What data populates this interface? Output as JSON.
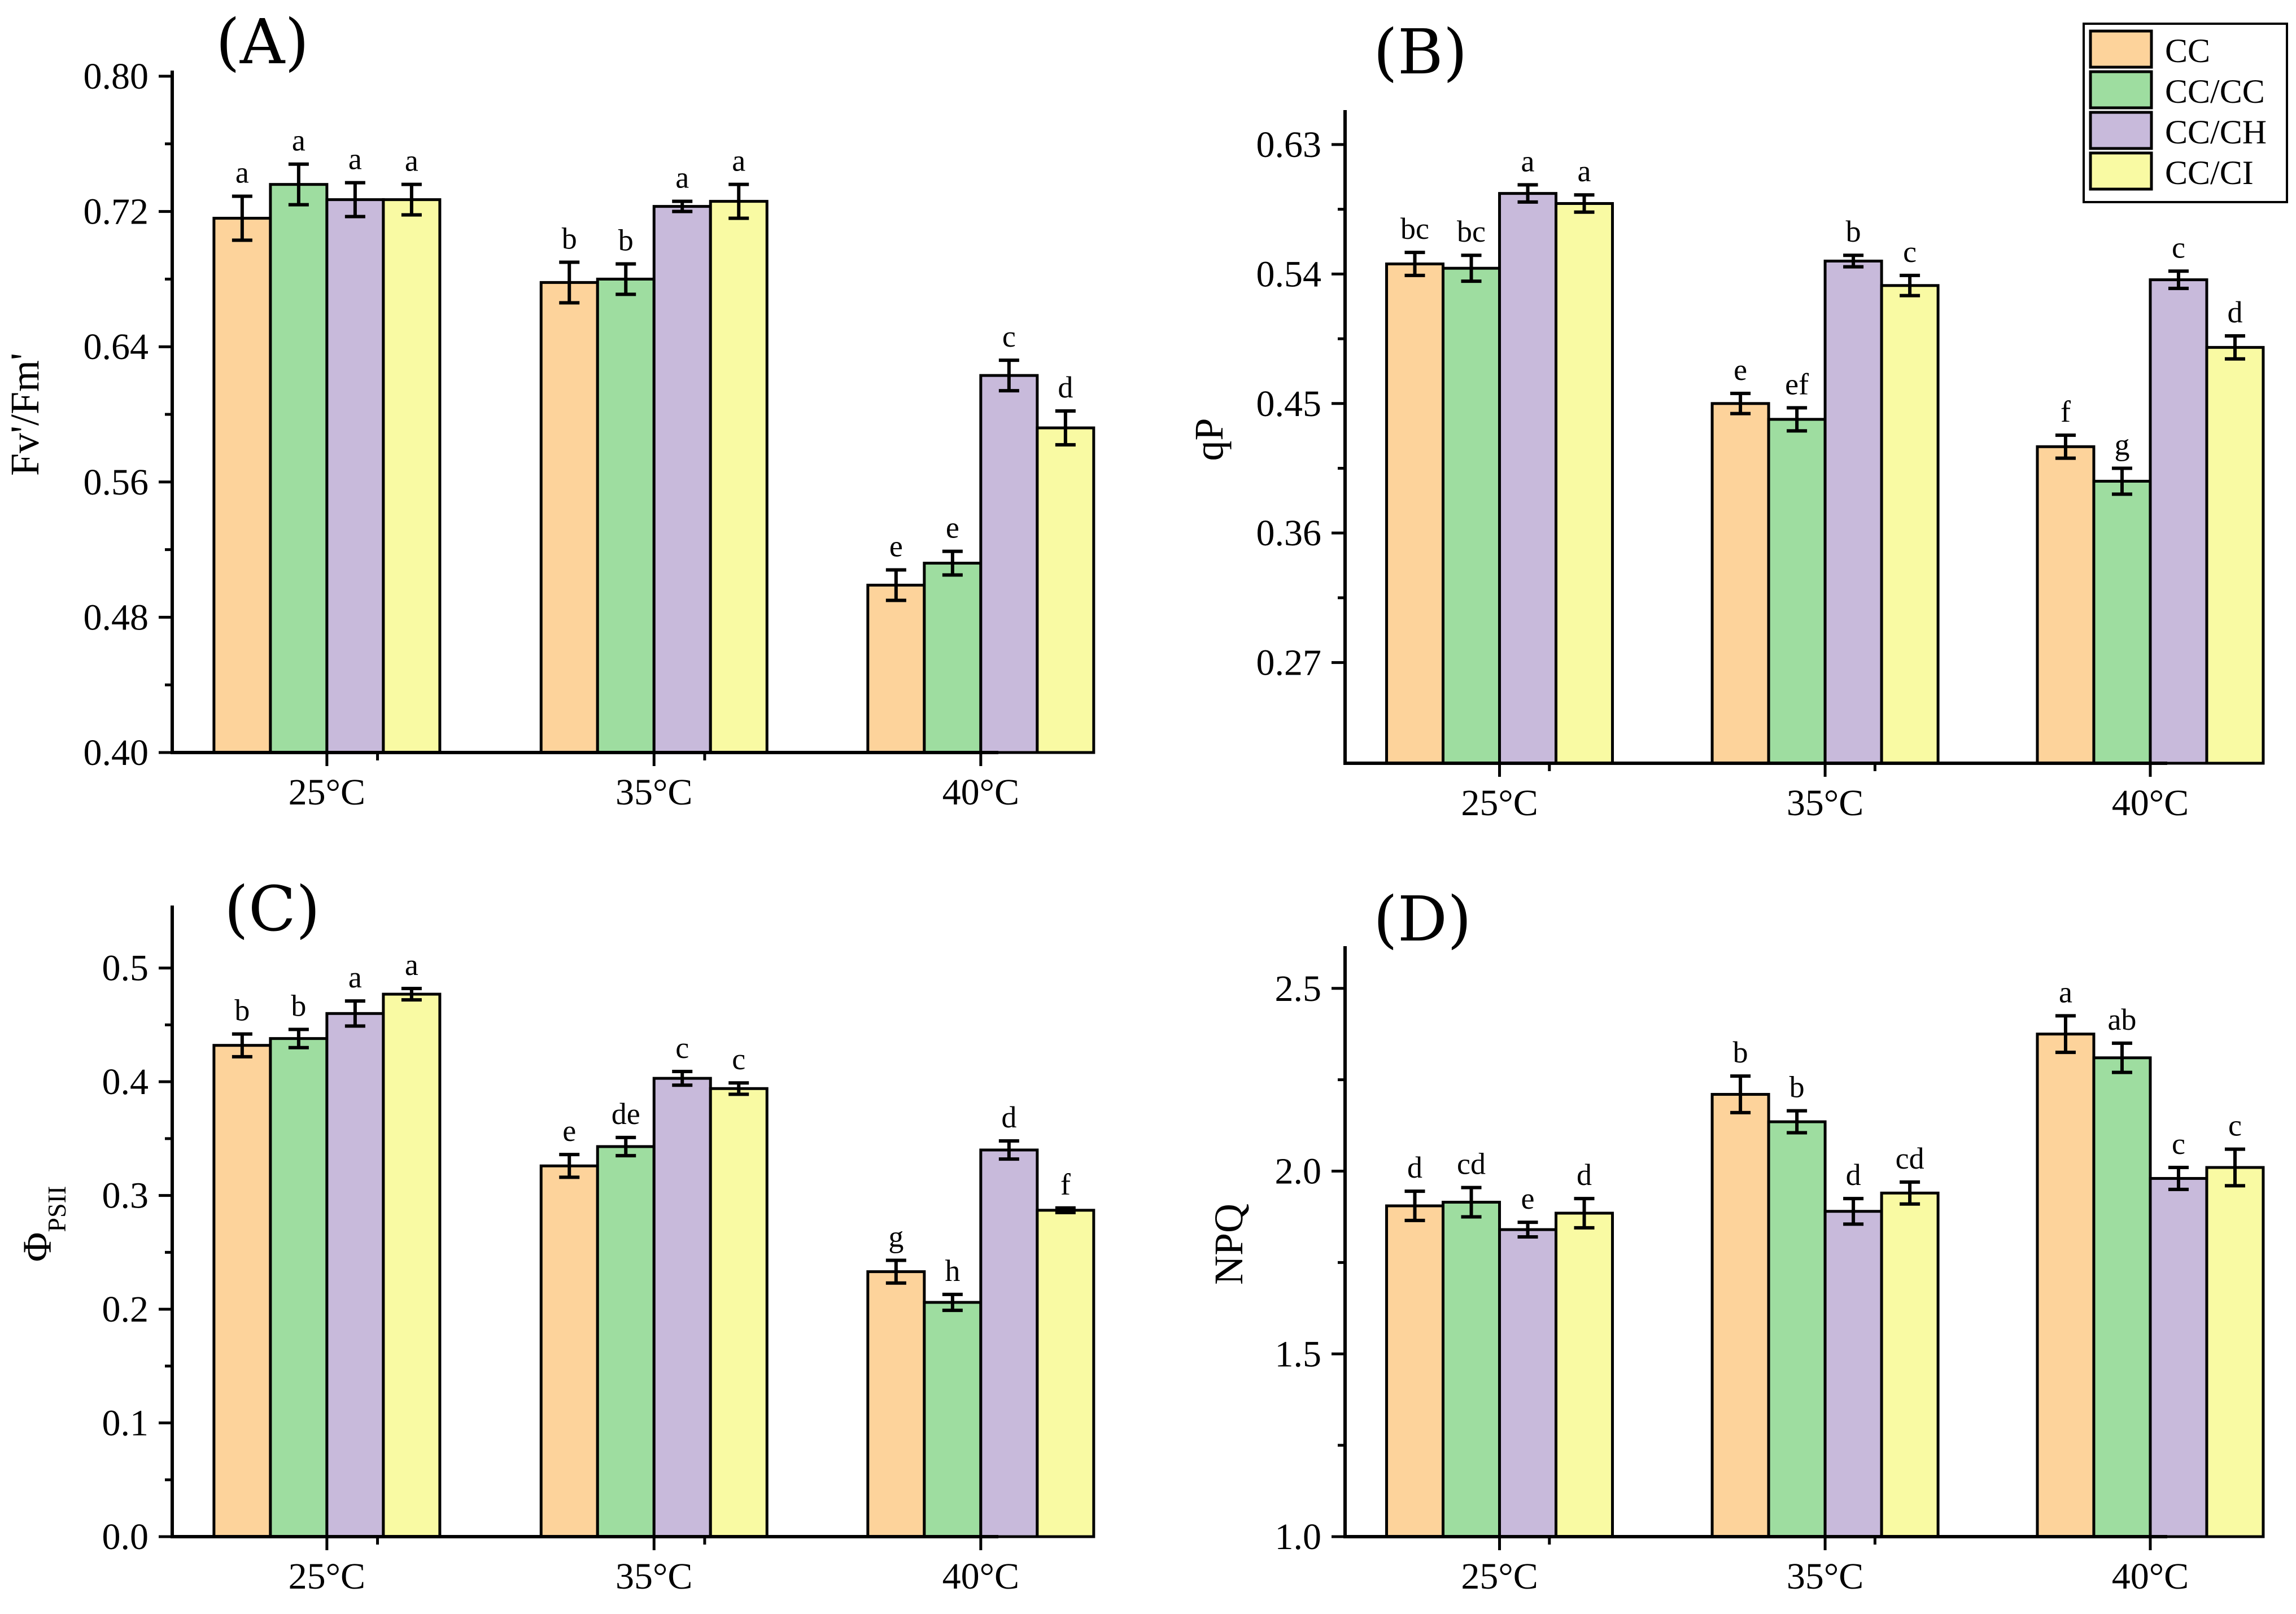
{
  "legend": {
    "items": [
      {
        "label": "CC",
        "color": "#FDD39B"
      },
      {
        "label": "CC/CC",
        "color": "#9EDDA0"
      },
      {
        "label": "CC/CH",
        "color": "#C8BADB"
      },
      {
        "label": "CC/CI",
        "color": "#F9FAA3"
      }
    ]
  },
  "chart_data": [
    {
      "type": "bar",
      "panel": "(A)",
      "ylabel": "Fv'/Fm'",
      "ylim": [
        0.4,
        0.8
      ],
      "yticks": [
        "0.40",
        "0.48",
        "0.56",
        "0.64",
        "0.72",
        "0.80"
      ],
      "categories": [
        "25°C",
        "35°C",
        "40°C"
      ],
      "series": [
        {
          "name": "CC",
          "values": [
            0.716,
            0.678,
            0.499
          ],
          "errors": [
            0.013,
            0.012,
            0.009
          ],
          "letters": [
            "a",
            "b",
            "e"
          ]
        },
        {
          "name": "CC/CC",
          "values": [
            0.736,
            0.68,
            0.512
          ],
          "errors": [
            0.012,
            0.009,
            0.007
          ],
          "letters": [
            "a",
            "b",
            "e"
          ]
        },
        {
          "name": "CC/CH",
          "values": [
            0.727,
            0.723,
            0.623
          ],
          "errors": [
            0.01,
            0.003,
            0.009
          ],
          "letters": [
            "a",
            "a",
            "c"
          ]
        },
        {
          "name": "CC/CI",
          "values": [
            0.727,
            0.726,
            0.592
          ],
          "errors": [
            0.009,
            0.01,
            0.01
          ],
          "letters": [
            "a",
            "a",
            "d"
          ]
        }
      ]
    },
    {
      "type": "bar",
      "panel": "(B)",
      "ylabel": "qP",
      "ylim": [
        0.2,
        0.65
      ],
      "yticks": [
        "0.27",
        "0.36",
        "0.45",
        "0.54",
        "0.63"
      ],
      "categories": [
        "25°C",
        "35°C",
        "40°C"
      ],
      "series": [
        {
          "name": "CC",
          "values": [
            0.547,
            0.45,
            0.42
          ],
          "errors": [
            0.008,
            0.007,
            0.008
          ],
          "letters": [
            "bc",
            "e",
            "f"
          ]
        },
        {
          "name": "CC/CC",
          "values": [
            0.544,
            0.439,
            0.396
          ],
          "errors": [
            0.009,
            0.008,
            0.009
          ],
          "letters": [
            "bc",
            "ef",
            "g"
          ]
        },
        {
          "name": "CC/CH",
          "values": [
            0.596,
            0.549,
            0.536
          ],
          "errors": [
            0.006,
            0.004,
            0.006
          ],
          "letters": [
            "a",
            "b",
            "c"
          ]
        },
        {
          "name": "CC/CI",
          "values": [
            0.589,
            0.532,
            0.489
          ],
          "errors": [
            0.006,
            0.007,
            0.008
          ],
          "letters": [
            "a",
            "c",
            "d"
          ]
        }
      ]
    },
    {
      "type": "bar",
      "panel": "(C)",
      "ylabel": "Φ",
      "ylabel_sub": "PSII",
      "ylim": [
        0.0,
        0.55
      ],
      "yticks": [
        "0.0",
        "0.1",
        "0.2",
        "0.3",
        "0.4",
        "0.5"
      ],
      "categories": [
        "25°C",
        "35°C",
        "40°C"
      ],
      "series": [
        {
          "name": "CC",
          "values": [
            0.432,
            0.326,
            0.233
          ],
          "errors": [
            0.01,
            0.01,
            0.01
          ],
          "letters": [
            "b",
            "e",
            "g"
          ]
        },
        {
          "name": "CC/CC",
          "values": [
            0.438,
            0.343,
            0.206
          ],
          "errors": [
            0.008,
            0.008,
            0.007
          ],
          "letters": [
            "b",
            "de",
            "h"
          ]
        },
        {
          "name": "CC/CH",
          "values": [
            0.46,
            0.403,
            0.34
          ],
          "errors": [
            0.011,
            0.006,
            0.008
          ],
          "letters": [
            "a",
            "c",
            "d"
          ]
        },
        {
          "name": "CC/CI",
          "values": [
            0.477,
            0.394,
            0.287
          ],
          "errors": [
            0.005,
            0.005,
            0.002
          ],
          "letters": [
            "a",
            "c",
            "f"
          ]
        }
      ]
    },
    {
      "type": "bar",
      "panel": "(D)",
      "ylabel": "NPQ",
      "ylim": [
        1.0,
        2.6
      ],
      "yticks": [
        "1.0",
        "1.5",
        "2.0",
        "2.5"
      ],
      "categories": [
        "25°C",
        "35°C",
        "40°C"
      ],
      "series": [
        {
          "name": "CC",
          "values": [
            1.905,
            2.21,
            2.375
          ],
          "errors": [
            0.04,
            0.05,
            0.05
          ],
          "letters": [
            "d",
            "b",
            "a"
          ]
        },
        {
          "name": "CC/CC",
          "values": [
            1.915,
            2.135,
            2.31
          ],
          "errors": [
            0.04,
            0.03,
            0.04
          ],
          "letters": [
            "cd",
            "b",
            "ab"
          ]
        },
        {
          "name": "CC/CH",
          "values": [
            1.84,
            1.89,
            1.98
          ],
          "errors": [
            0.02,
            0.035,
            0.03
          ],
          "letters": [
            "e",
            "d",
            "c"
          ]
        },
        {
          "name": "CC/CI",
          "values": [
            1.885,
            1.94,
            2.01
          ],
          "errors": [
            0.04,
            0.03,
            0.05
          ],
          "letters": [
            "d",
            "cd",
            "c"
          ]
        }
      ]
    }
  ]
}
